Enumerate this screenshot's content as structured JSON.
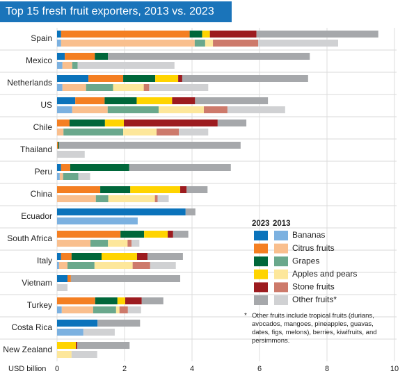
{
  "chart_data": {
    "type": "stacked-bar-horizontal",
    "title": "Top 15 fresh fruit exporters, 2013 vs. 2023",
    "x_label": "USD billion",
    "categories": [
      "Spain",
      "Mexico",
      "Netherlands",
      "US",
      "Chile",
      "Thailand",
      "Peru",
      "China",
      "Ecuador",
      "South Africa",
      "Italy",
      "Vietnam",
      "Turkey",
      "Costa Rica",
      "New Zealand"
    ],
    "years": [
      "2023",
      "2013"
    ],
    "xlim": [
      0,
      10
    ],
    "xticks": [
      0,
      2,
      4,
      6,
      8,
      10
    ],
    "grid": true,
    "series": [
      {
        "name": "Bananas",
        "colors": [
          "#0b73bb",
          "#7cb1e0"
        ],
        "values": [
          [
            0.12,
            0.23,
            0.93,
            0.54,
            0,
            0,
            0.12,
            0,
            3.81,
            0,
            0.12,
            0.31,
            0,
            1.2,
            0
          ],
          [
            0.12,
            0.16,
            0.16,
            0.45,
            0,
            0,
            0.08,
            0,
            2.39,
            0,
            0.06,
            0,
            0.14,
            0.78,
            0
          ]
        ]
      },
      {
        "name": "Citrus fruits",
        "colors": [
          "#f47f22",
          "#f9bf8e"
        ],
        "values": [
          [
            3.81,
            0.89,
            1.03,
            0.87,
            0.37,
            0.03,
            0.27,
            1.28,
            0,
            1.88,
            0.31,
            0.1,
            1.13,
            0,
            0
          ],
          [
            3.96,
            0.29,
            0.7,
            1.05,
            0.19,
            0,
            0.1,
            1.15,
            0,
            0.99,
            0.25,
            0,
            0.93,
            0,
            0
          ]
        ]
      },
      {
        "name": "Grapes",
        "colors": [
          "#00673a",
          "#6aa88c"
        ],
        "values": [
          [
            0.37,
            0.39,
            0.95,
            0.95,
            1.05,
            0.03,
            1.75,
            0.89,
            0,
            0.7,
            0.89,
            0,
            0.66,
            0,
            0
          ],
          [
            0.31,
            0.16,
            0.8,
            1.51,
            1.77,
            0,
            0.45,
            0.37,
            0,
            0.52,
            0.8,
            0,
            0.68,
            0,
            0
          ]
        ]
      },
      {
        "name": "Apples and pears",
        "colors": [
          "#ffd400",
          "#fde79b"
        ],
        "values": [
          [
            0.23,
            0,
            0.68,
            1.05,
            0.56,
            0,
            0,
            1.48,
            0,
            0.7,
            1.05,
            0,
            0.23,
            0,
            0.56
          ],
          [
            0.23,
            0,
            0.91,
            1.34,
            0.99,
            0,
            0,
            1.38,
            0,
            0.58,
            1.13,
            0,
            0.1,
            0,
            0.43
          ]
        ]
      },
      {
        "name": "Stone fruits",
        "colors": [
          "#9c1b1f",
          "#cd7a6b"
        ],
        "values": [
          [
            1.38,
            0,
            0.12,
            0.68,
            2.78,
            0,
            0,
            0.19,
            0,
            0.16,
            0.31,
            0,
            0.49,
            0,
            0.04
          ],
          [
            1.34,
            0,
            0.16,
            0.7,
            0.66,
            0,
            0,
            0.08,
            0,
            0.12,
            0.52,
            0,
            0.25,
            0,
            0
          ]
        ]
      },
      {
        "name": "Other fruits*",
        "colors": [
          "#a6a8ab",
          "#d0d1d3"
        ],
        "values": [
          [
            3.61,
            5.98,
            3.73,
            2.16,
            0.85,
            5.38,
            3.01,
            0.62,
            0.29,
            0.45,
            1.05,
            3.24,
            0.64,
            1.26,
            1.55
          ],
          [
            2.37,
            2.87,
            1.75,
            1.71,
            0.87,
            0.82,
            0.35,
            0.33,
            0,
            0.23,
            0.76,
            0.31,
            0.39,
            0.93,
            0.76
          ]
        ]
      }
    ],
    "note_marker": "*",
    "note": "Other fruits include tropical fruits (durians, avocados, mangoes, pineapples, guavas, dates, figs, melons), berries, kiwifruits, and persimmons."
  }
}
